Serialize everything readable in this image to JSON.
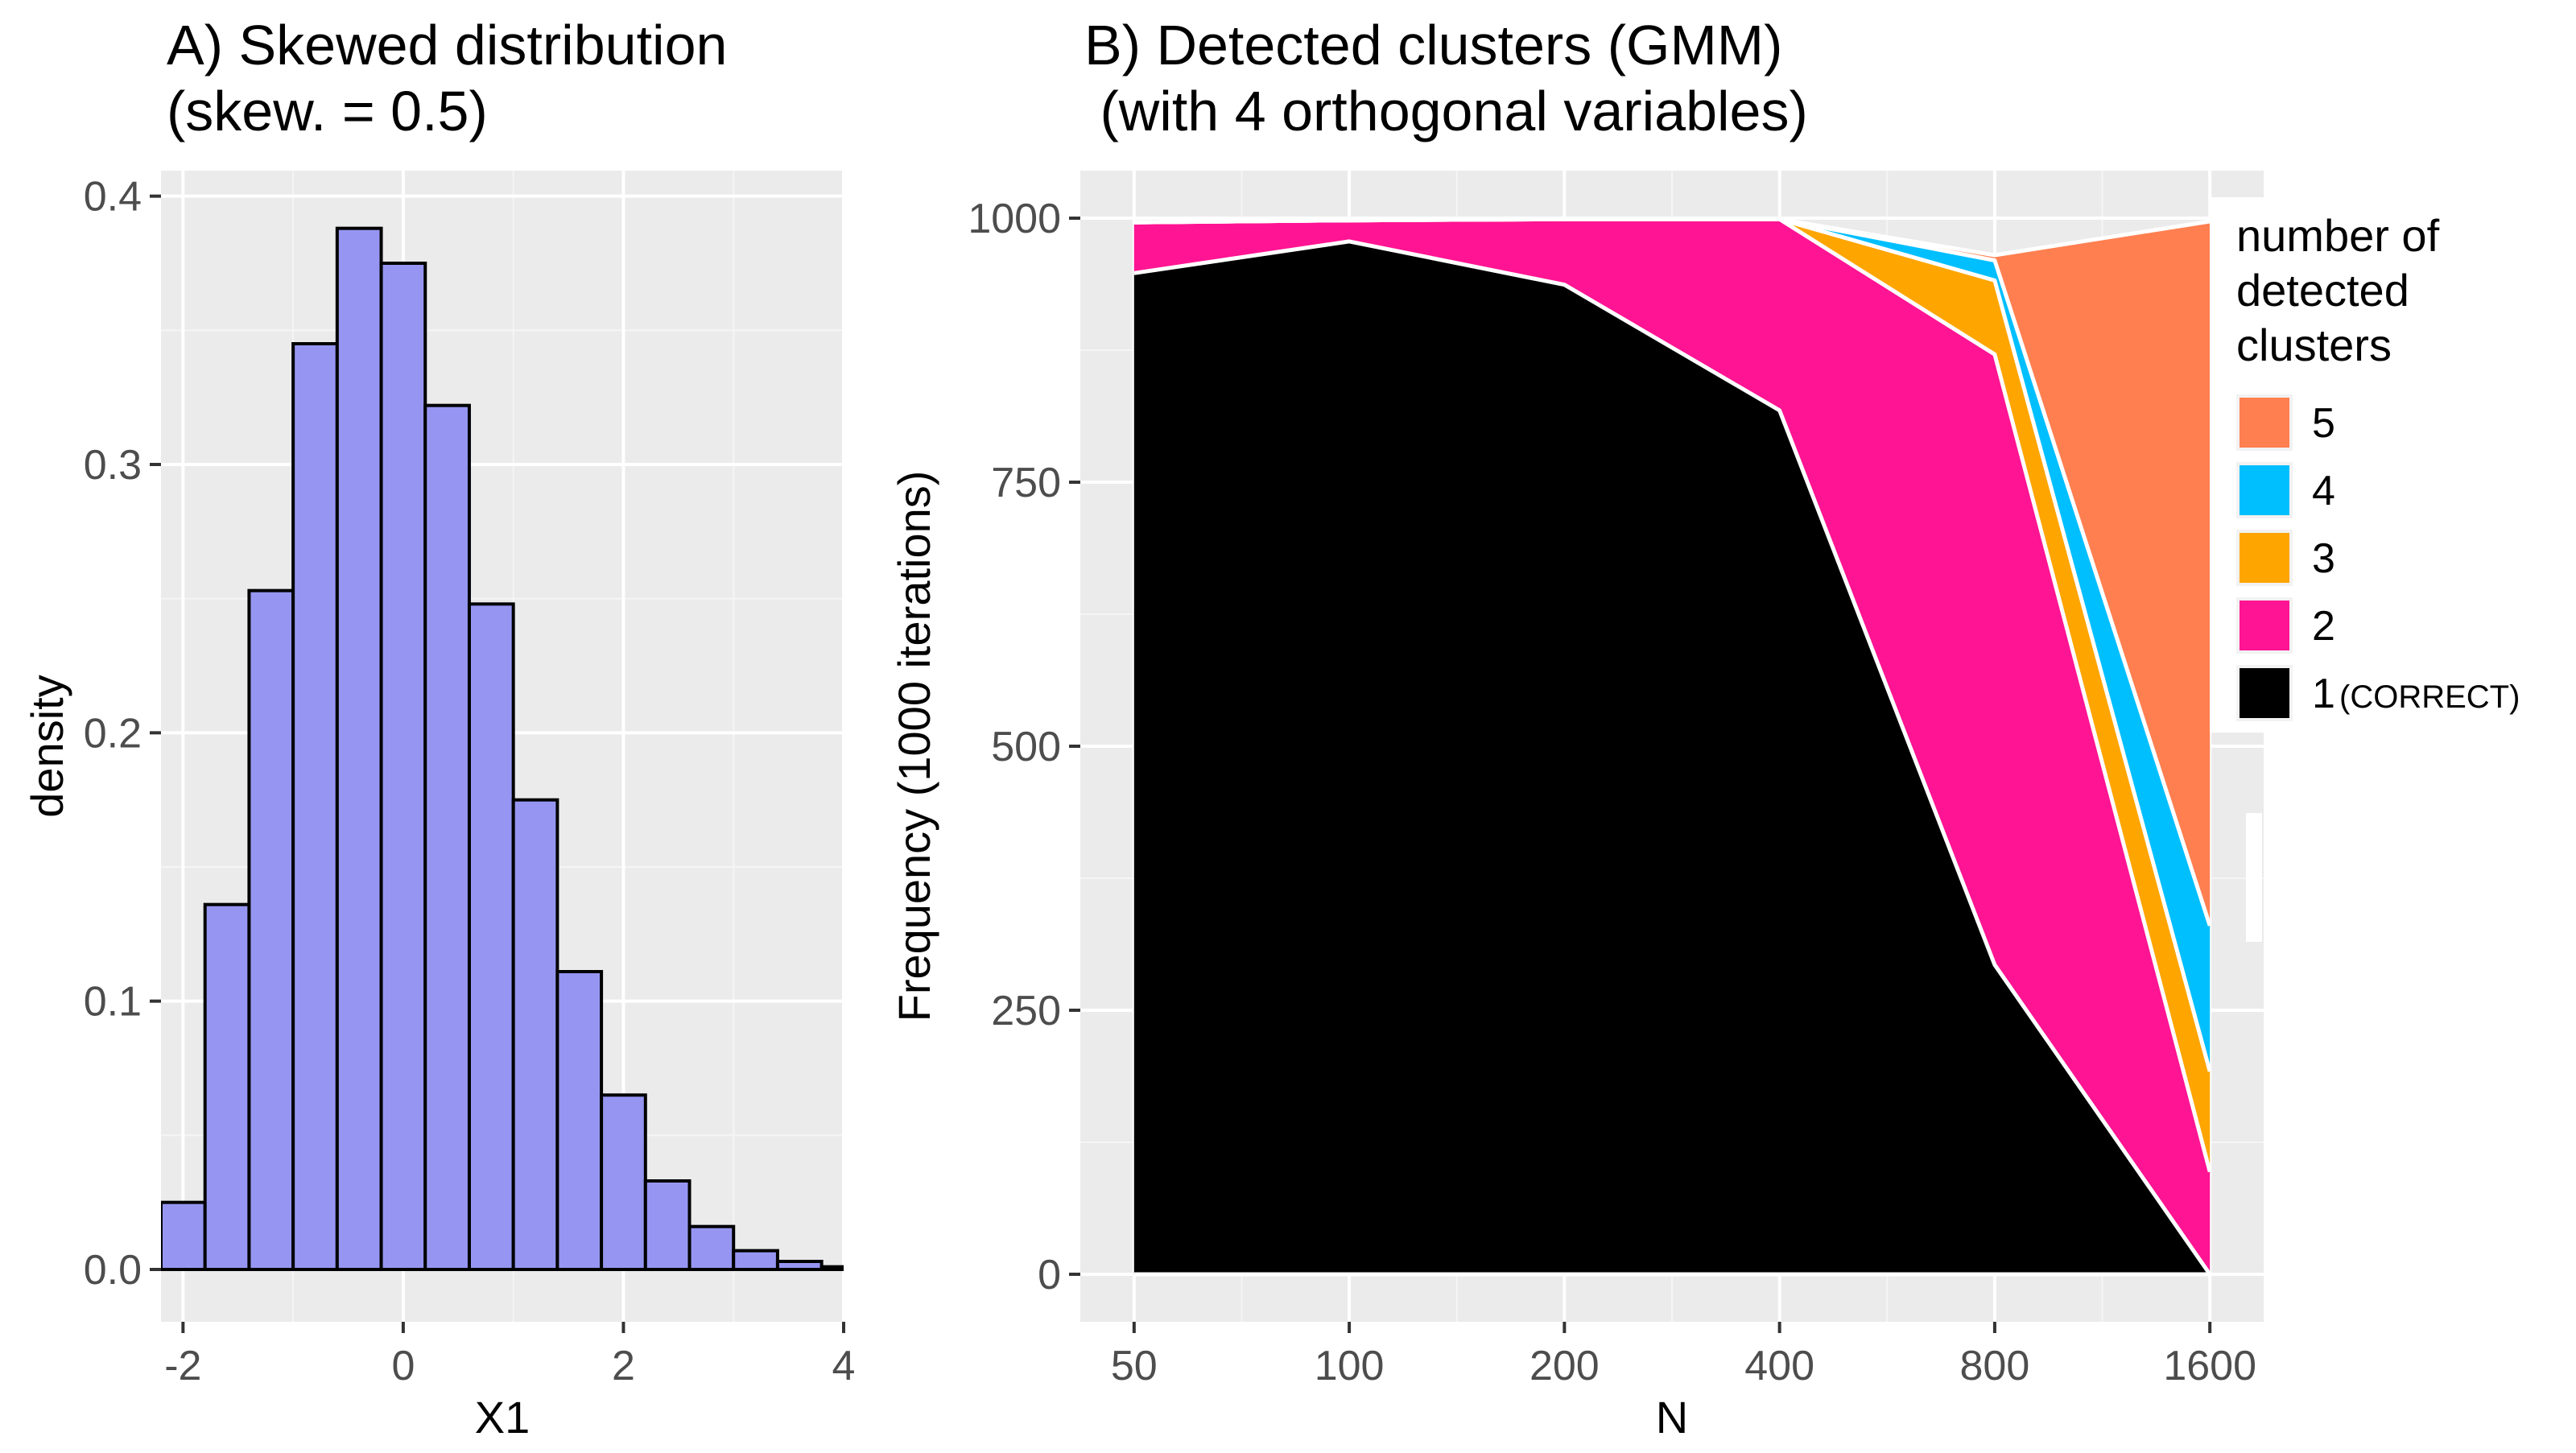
{
  "chart_data": [
    {
      "type": "bar",
      "panel": "A",
      "title_line1": "A) Skewed distribution",
      "title_line2": "(skew. = 0.5)",
      "xlabel": "X1",
      "ylabel": "density",
      "xlim": [
        -2.2,
        4.0
      ],
      "ylim": [
        -0.0195,
        0.4095
      ],
      "xticks": [
        -2,
        0,
        2,
        4
      ],
      "xtick_labels": [
        "-2",
        "0",
        "2",
        "4"
      ],
      "yticks": [
        0.0,
        0.1,
        0.2,
        0.3,
        0.4
      ],
      "ytick_labels": [
        "0.0",
        "0.1",
        "0.2",
        "0.3",
        "0.4"
      ],
      "bin_width": 0.4,
      "bin_centers": [
        -2.0,
        -1.6,
        -1.2,
        -0.8,
        -0.4,
        0.0,
        0.4,
        0.8,
        1.2,
        1.6,
        2.0,
        2.4,
        2.8,
        3.2,
        3.6,
        4.0
      ],
      "values": [
        0.025,
        0.136,
        0.253,
        0.345,
        0.388,
        0.375,
        0.322,
        0.248,
        0.175,
        0.111,
        0.065,
        0.033,
        0.016,
        0.007,
        0.003,
        0.001
      ],
      "fill_color": "#9696f2",
      "edge_color": "#000000",
      "grid": true,
      "panel_background": "#ebebeb"
    },
    {
      "type": "area",
      "panel": "B",
      "stacked": true,
      "title_line1": "B) Detected clusters (GMM)",
      "title_line2": " (with 4 orthogonal variables)",
      "xlabel": "N",
      "ylabel": "Frequency (1000 iterations)",
      "x_scale": "log2",
      "x": [
        50,
        100,
        200,
        400,
        800,
        1600
      ],
      "xtick_labels": [
        "50",
        "100",
        "200",
        "400",
        "800",
        "1600"
      ],
      "ylim": [
        -45,
        1045
      ],
      "yticks": [
        0,
        250,
        500,
        750,
        1000
      ],
      "ytick_labels": [
        "0",
        "250",
        "500",
        "750",
        "1000"
      ],
      "grid": true,
      "panel_background": "#ebebeb",
      "legend_title_lines": [
        "number of",
        "detected",
        "clusters"
      ],
      "legend_position": "right",
      "series": [
        {
          "name": "1",
          "note": "(CORRECT)",
          "color": "#000000",
          "values": [
            948,
            978,
            937,
            818,
            293,
            0
          ]
        },
        {
          "name": "2",
          "color": "#ff1493",
          "values": [
            48,
            20,
            62,
            181,
            578,
            97
          ]
        },
        {
          "name": "3",
          "color": "#ffa500",
          "values": [
            0,
            0,
            0,
            0,
            70,
            95
          ]
        },
        {
          "name": "4",
          "color": "#00bfff",
          "values": [
            0,
            0,
            0,
            0,
            19,
            138
          ]
        },
        {
          "name": "5",
          "color": "#ff7f50",
          "values": [
            0,
            0,
            0,
            0,
            5,
            667
          ]
        }
      ]
    }
  ]
}
